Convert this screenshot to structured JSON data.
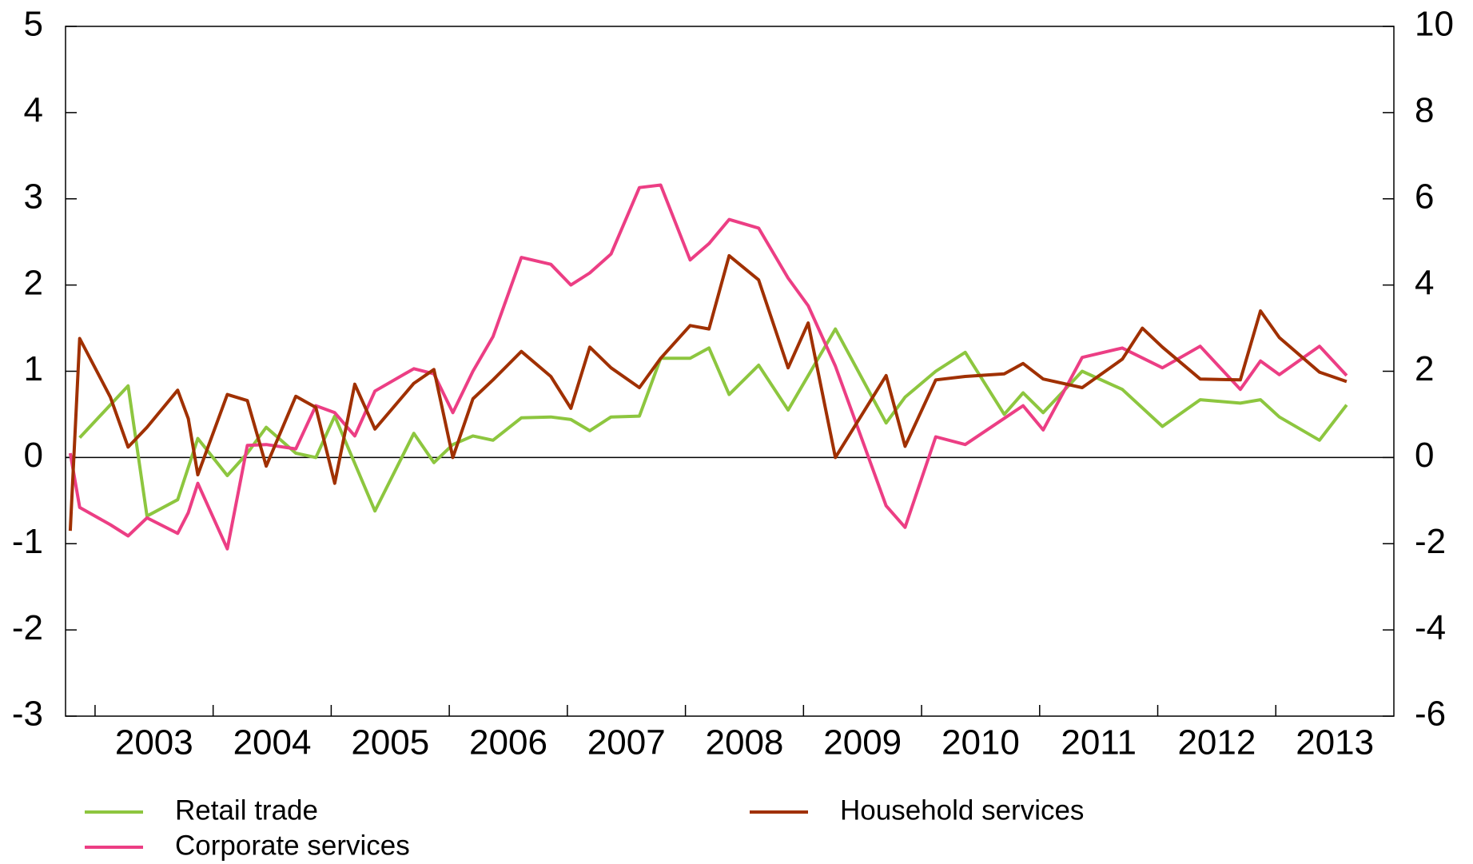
{
  "chart_data": {
    "type": "line",
    "xlim": [
      2002.75,
      2014.0
    ],
    "xticks": [
      2003,
      2004,
      2005,
      2006,
      2007,
      2008,
      2009,
      2010,
      2011,
      2012,
      2013
    ],
    "ylim": [
      -3,
      5
    ],
    "yticks": [
      -3,
      -2,
      -1,
      0,
      1,
      2,
      3,
      4,
      5
    ],
    "y2lim": [
      -6,
      10
    ],
    "y2ticks": [
      -6,
      -4,
      -2,
      0,
      2,
      4,
      6,
      8,
      10
    ],
    "series": [
      {
        "name": "Retail trade",
        "color": "#8dc63f",
        "x": [
          2002.87,
          2003.28,
          2003.44,
          2003.7,
          2003.87,
          2004.12,
          2004.29,
          2004.45,
          2004.7,
          2004.87,
          2005.03,
          2005.37,
          2005.7,
          2005.87,
          2006.03,
          2006.2,
          2006.37,
          2006.61,
          2006.86,
          2007.03,
          2007.19,
          2007.37,
          2007.61,
          2007.79,
          2008.04,
          2008.2,
          2008.37,
          2008.62,
          2008.87,
          2009.27,
          2009.7,
          2009.86,
          2010.12,
          2010.37,
          2010.7,
          2010.86,
          2011.03,
          2011.36,
          2011.7,
          2012.04,
          2012.36,
          2012.7,
          2012.87,
          2013.03,
          2013.37,
          2013.6
        ],
        "values": [
          0.23,
          0.83,
          -0.68,
          -0.49,
          0.22,
          -0.21,
          0.05,
          0.35,
          0.05,
          0.0,
          0.48,
          -0.62,
          0.28,
          -0.06,
          0.15,
          0.25,
          0.2,
          0.46,
          0.47,
          0.44,
          0.31,
          0.47,
          0.48,
          1.15,
          1.15,
          1.27,
          0.73,
          1.07,
          0.55,
          1.49,
          0.4,
          0.7,
          1.0,
          1.22,
          0.5,
          0.75,
          0.52,
          1.0,
          0.79,
          0.36,
          0.67,
          0.63,
          0.67,
          0.47,
          0.2,
          0.61
        ]
      },
      {
        "name": "Corporate services",
        "color": "#ec3e84",
        "x": [
          2002.79,
          2002.87,
          2003.13,
          2003.28,
          2003.44,
          2003.7,
          2003.79,
          2003.87,
          2004.12,
          2004.29,
          2004.45,
          2004.7,
          2004.87,
          2005.03,
          2005.2,
          2005.37,
          2005.7,
          2005.87,
          2006.03,
          2006.2,
          2006.37,
          2006.61,
          2006.86,
          2007.03,
          2007.19,
          2007.37,
          2007.61,
          2007.79,
          2008.04,
          2008.2,
          2008.37,
          2008.62,
          2008.87,
          2009.04,
          2009.27,
          2009.7,
          2009.86,
          2010.12,
          2010.37,
          2010.86,
          2011.03,
          2011.36,
          2011.7,
          2012.04,
          2012.36,
          2012.7,
          2012.87,
          2013.03,
          2013.37,
          2013.6
        ],
        "values": [
          0.05,
          -0.58,
          -0.78,
          -0.91,
          -0.7,
          -0.88,
          -0.64,
          -0.3,
          -1.06,
          0.14,
          0.15,
          0.1,
          0.6,
          0.52,
          0.25,
          0.77,
          1.03,
          0.97,
          0.52,
          1.0,
          1.4,
          2.32,
          2.24,
          2.0,
          2.14,
          2.36,
          3.13,
          3.16,
          2.29,
          2.48,
          2.76,
          2.66,
          2.08,
          1.76,
          1.06,
          -0.56,
          -0.81,
          0.24,
          0.15,
          0.6,
          0.32,
          1.16,
          1.27,
          1.04,
          1.29,
          0.79,
          1.12,
          0.96,
          1.29,
          0.95
        ]
      },
      {
        "name": "Household services",
        "color": "#a03000",
        "x": [
          2002.79,
          2002.87,
          2003.13,
          2003.28,
          2003.44,
          2003.7,
          2003.79,
          2003.87,
          2004.12,
          2004.29,
          2004.45,
          2004.7,
          2004.87,
          2005.03,
          2005.2,
          2005.37,
          2005.7,
          2005.87,
          2006.03,
          2006.2,
          2006.37,
          2006.61,
          2006.86,
          2007.03,
          2007.19,
          2007.37,
          2007.61,
          2007.79,
          2008.04,
          2008.2,
          2008.37,
          2008.62,
          2008.87,
          2009.04,
          2009.27,
          2009.7,
          2009.86,
          2010.12,
          2010.37,
          2010.7,
          2010.86,
          2011.03,
          2011.36,
          2011.7,
          2011.87,
          2012.04,
          2012.36,
          2012.7,
          2012.87,
          2013.03,
          2013.37,
          2013.6
        ],
        "values": [
          -0.85,
          1.38,
          0.7,
          0.12,
          0.35,
          0.78,
          0.45,
          -0.2,
          0.73,
          0.66,
          -0.1,
          0.71,
          0.58,
          -0.3,
          0.85,
          0.33,
          0.86,
          1.02,
          0.0,
          0.68,
          0.9,
          1.23,
          0.94,
          0.57,
          1.28,
          1.04,
          0.81,
          1.15,
          1.53,
          1.49,
          2.34,
          2.06,
          1.04,
          1.56,
          0.0,
          0.95,
          0.13,
          0.9,
          0.94,
          0.97,
          1.09,
          0.91,
          0.81,
          1.14,
          1.5,
          1.28,
          0.91,
          0.9,
          1.7,
          1.39,
          0.99,
          0.88
        ]
      }
    ]
  }
}
